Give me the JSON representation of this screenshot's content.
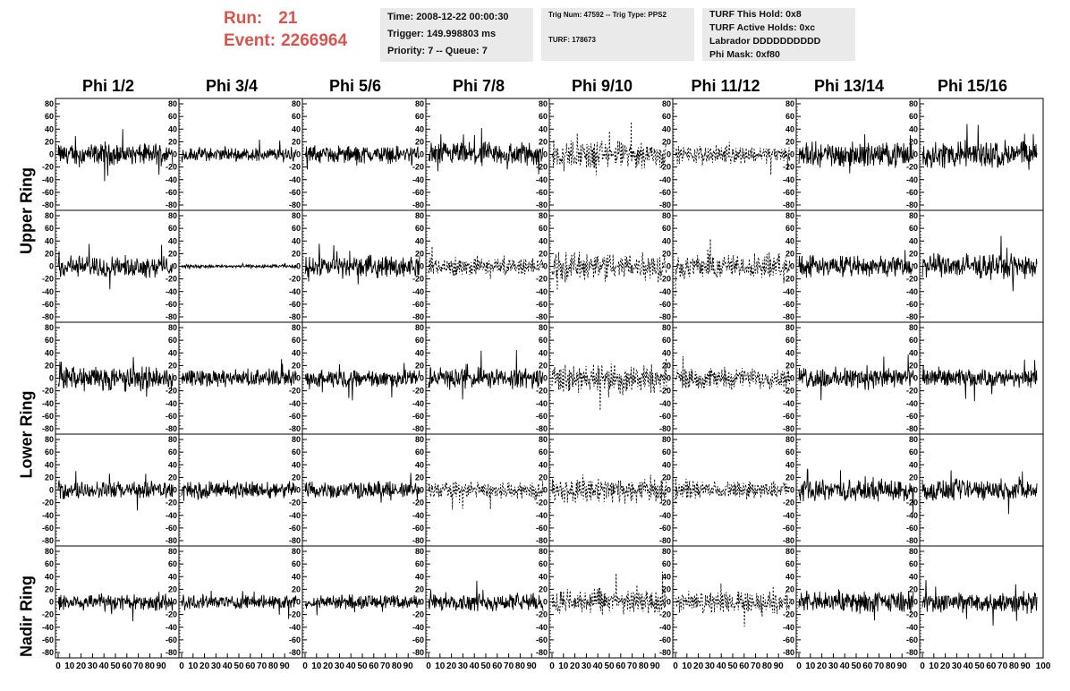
{
  "header": {
    "run_label": "Run:",
    "run_value": "21",
    "event_label": "Event:",
    "event_value": "2266964",
    "time": "Time: 2008-12-22 00:00:30",
    "trigger": "Trigger: 149.998803 ms",
    "priority": "Priority: 7 -- Queue: 7",
    "trig_num": "Trig Num: 47592 -- Trig Type: PPS2",
    "turf": "TURF: 178673",
    "turf_this_hold": "TURF This Hold: 0x8",
    "turf_active_holds": "TURF Active Holds: 0xc",
    "labrador": "Labrador DDDDDDDDDD",
    "phi_mask": "Phi Mask: 0xf80"
  },
  "columns": [
    "Phi 1/2",
    "Phi 3/4",
    "Phi 5/6",
    "Phi 7/8",
    "Phi 9/10",
    "Phi 11/12",
    "Phi 13/14",
    "Phi 15/16"
  ],
  "rings": [
    "Upper Ring",
    "Lower Ring",
    "Nadir Ring"
  ],
  "chart_data": {
    "type": "line",
    "rows": 5,
    "cols": 8,
    "y_ticks": [
      "80",
      "60",
      "40",
      "20",
      "0",
      "-20",
      "-40",
      "-60",
      "-80"
    ],
    "ylim": [
      -80,
      80
    ],
    "x_ticks": [
      "0",
      "10",
      "20",
      "30",
      "40",
      "50",
      "60",
      "70",
      "80",
      "90"
    ],
    "last_x_tick": "100",
    "xlim": [
      0,
      100
    ],
    "dashed_cells": [
      [
        0,
        4
      ],
      [
        0,
        5
      ],
      [
        1,
        3
      ],
      [
        1,
        4
      ],
      [
        1,
        5
      ],
      [
        2,
        4
      ],
      [
        2,
        5
      ],
      [
        3,
        3
      ],
      [
        3,
        4
      ],
      [
        3,
        5
      ],
      [
        4,
        4
      ],
      [
        4,
        5
      ]
    ],
    "amplitudes": [
      [
        12,
        8,
        10,
        14,
        16,
        10,
        14,
        16
      ],
      [
        12,
        2,
        12,
        10,
        16,
        14,
        12,
        14
      ],
      [
        14,
        10,
        10,
        12,
        16,
        12,
        12,
        10
      ],
      [
        10,
        10,
        10,
        10,
        14,
        10,
        12,
        12
      ],
      [
        10,
        8,
        8,
        10,
        14,
        12,
        12,
        12
      ]
    ]
  }
}
